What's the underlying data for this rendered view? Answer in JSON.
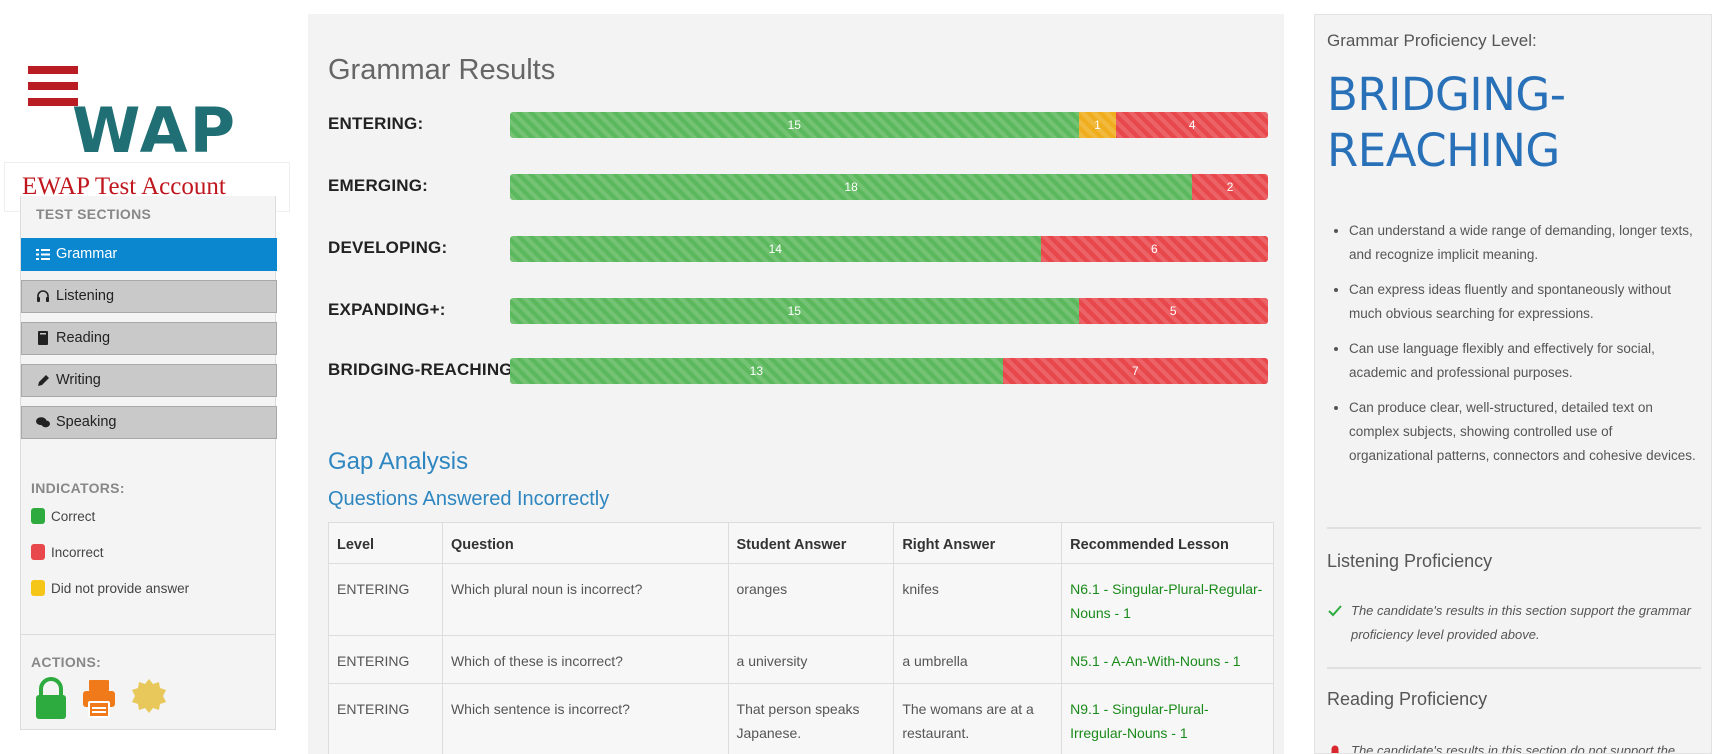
{
  "account": {
    "name": "EWAP Test Account",
    "logo_text": "EWAP"
  },
  "sidebar": {
    "sections_title": "TEST SECTIONS",
    "items": [
      {
        "label": "Grammar",
        "icon": "list-icon",
        "active": true
      },
      {
        "label": "Listening",
        "icon": "headphones-icon",
        "active": false
      },
      {
        "label": "Reading",
        "icon": "book-icon",
        "active": false
      },
      {
        "label": "Writing",
        "icon": "pencil-icon",
        "active": false
      },
      {
        "label": "Speaking",
        "icon": "chat-icon",
        "active": false
      }
    ],
    "indicators_title": "INDICATORS:",
    "indicators": [
      {
        "label": "Correct",
        "color": "#2eab3f"
      },
      {
        "label": "Incorrect",
        "color": "#e8474c"
      },
      {
        "label": "Did not provide answer",
        "color": "#f5c518"
      }
    ],
    "actions_title": "ACTIONS:",
    "actions": [
      {
        "icon": "lock-icon",
        "color": "#2eab3f"
      },
      {
        "icon": "printer-icon",
        "color": "#f07a1a"
      },
      {
        "icon": "badge-icon",
        "color": "#e8c85a"
      }
    ]
  },
  "main": {
    "title": "Grammar Results",
    "levels": [
      {
        "label": "ENTERING:",
        "correct": 15,
        "noanswer": 1,
        "incorrect": 4
      },
      {
        "label": "EMERGING:",
        "correct": 18,
        "noanswer": 0,
        "incorrect": 2
      },
      {
        "label": "DEVELOPING:",
        "correct": 14,
        "noanswer": 0,
        "incorrect": 6
      },
      {
        "label": "EXPANDING+:",
        "correct": 15,
        "noanswer": 0,
        "incorrect": 5
      },
      {
        "label": "BRIDGING-REACHING:",
        "correct": 13,
        "noanswer": 0,
        "incorrect": 7
      }
    ],
    "gap_title": "Gap Analysis",
    "questions_title": "Questions Answered Incorrectly",
    "table": {
      "headers": [
        "Level",
        "Question",
        "Student Answer",
        "Right Answer",
        "Recommended Lesson"
      ],
      "rows": [
        [
          "ENTERING",
          "Which plural noun is incorrect?",
          "oranges",
          "knifes",
          "N6.1 - Singular-Plural-Regular-Nouns - 1"
        ],
        [
          "ENTERING",
          "Which of these is incorrect?",
          "a university",
          "a umbrella",
          "N5.1 - A-An-With-Nouns - 1"
        ],
        [
          "ENTERING",
          "Which sentence is incorrect?",
          "That person speaks Japanese.",
          "The womans are at a restaurant.",
          "N9.1 - Singular-Plural-Irregular-Nouns - 1"
        ]
      ]
    }
  },
  "right": {
    "proficiency_label": "Grammar Proficiency Level:",
    "proficiency_level": "BRIDGING-REACHING",
    "descriptors": [
      "Can understand a wide range of demanding, longer texts, and recognize implicit meaning.",
      "Can express ideas fluently and spontaneously without much obvious searching for expressions.",
      "Can use language flexibly and effectively for social, academic and professional purposes.",
      "Can produce clear, well-structured, detailed text on complex subjects, showing controlled use of organizational patterns, connectors and cohesive devices."
    ],
    "listening_title": "Listening Proficiency",
    "listening_note": "The candidate's results in this section support the grammar proficiency level provided above.",
    "reading_title": "Reading Proficiency",
    "reading_note": "The candidate's results in this section do not support the grammar proficiency level provided above."
  }
}
